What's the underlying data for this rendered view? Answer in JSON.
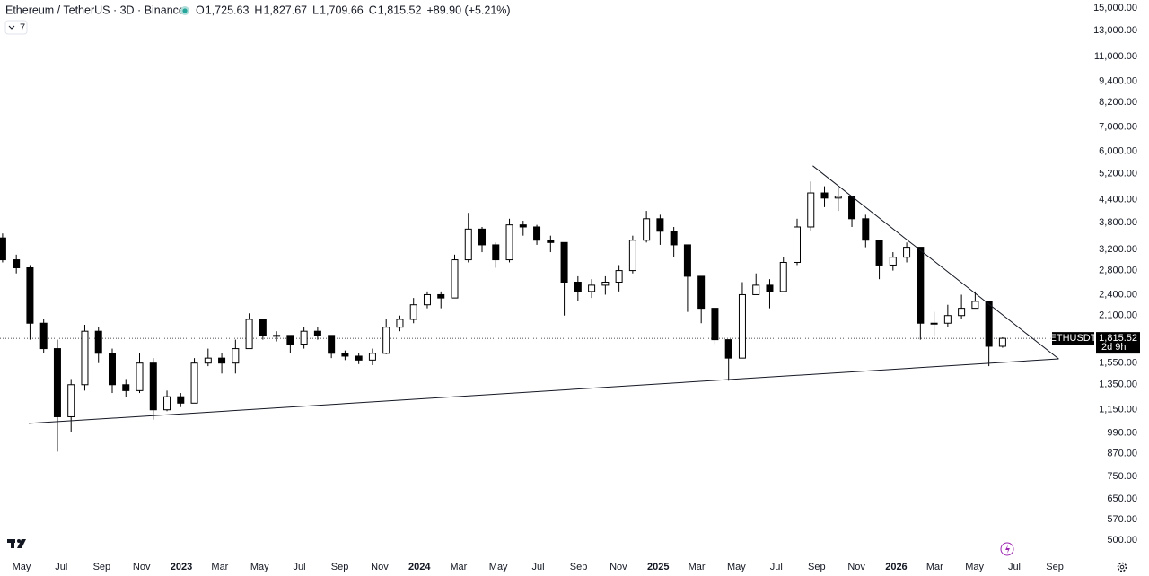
{
  "chart_data": {
    "type": "candlestick",
    "title": "Ethereum / TetherUS · 3D · Binance",
    "ohlc_legend": [
      {
        "key": "O",
        "text": "1,725.63"
      },
      {
        "key": "H",
        "text": "1,827.67"
      },
      {
        "key": "L",
        "text": "1,709.66"
      },
      {
        "key": "C",
        "text": "1,815.52"
      }
    ],
    "change": "+89.90 (+5.21%)",
    "indicator_count": "7",
    "symbol_tag": "ETHUSDT",
    "countdown": "2d 9h",
    "last_price": {
      "value": 1815.52,
      "label": "1,815.52"
    },
    "log_scale": true,
    "grid": false,
    "up_color": "#ffffff",
    "down_color": "#000000",
    "wick_color": "#000000",
    "x": [
      "2022-04-02",
      "2022-04-23",
      "2022-05-14",
      "2022-06-04",
      "2022-06-25",
      "2022-07-16",
      "2022-08-06",
      "2022-08-27",
      "2022-09-17",
      "2022-10-08",
      "2022-10-29",
      "2022-11-19",
      "2022-12-10",
      "2022-12-31",
      "2023-01-21",
      "2023-02-11",
      "2023-03-04",
      "2023-03-25",
      "2023-04-15",
      "2023-05-06",
      "2023-05-27",
      "2023-06-17",
      "2023-07-08",
      "2023-07-29",
      "2023-08-19",
      "2023-09-09",
      "2023-09-30",
      "2023-10-21",
      "2023-11-11",
      "2023-12-02",
      "2023-12-23",
      "2024-01-13",
      "2024-02-03",
      "2024-02-24",
      "2024-03-16",
      "2024-04-06",
      "2024-04-27",
      "2024-05-18",
      "2024-06-08",
      "2024-06-29",
      "2024-07-20",
      "2024-08-10",
      "2024-08-31",
      "2024-09-21",
      "2024-10-12",
      "2024-11-02",
      "2024-11-23",
      "2024-12-14",
      "2025-01-04",
      "2025-01-25",
      "2025-02-15",
      "2025-03-08",
      "2025-03-29",
      "2025-04-19",
      "2025-05-10",
      "2025-05-31",
      "2025-06-21",
      "2025-07-12",
      "2025-08-02",
      "2025-08-23",
      "2025-09-13",
      "2025-10-04",
      "2025-10-25",
      "2025-11-15",
      "2025-12-06",
      "2025-12-27",
      "2026-01-17",
      "2026-02-07",
      "2026-02-28",
      "2026-03-21",
      "2026-04-11",
      "2026-05-02",
      "2026-05-23",
      "2026-06-13"
    ],
    "open": [
      3450,
      3000,
      2850,
      2000,
      1700,
      1100,
      1350,
      1900,
      1650,
      1350,
      1300,
      1550,
      1150,
      1250,
      1200,
      1550,
      1600,
      1550,
      1700,
      2050,
      1850,
      1850,
      1750,
      1900,
      1850,
      1650,
      1620,
      1580,
      1650,
      1950,
      2050,
      2250,
      2400,
      2350,
      3000,
      3650,
      3300,
      3000,
      3750,
      3700,
      3400,
      3350,
      2600,
      2450,
      2550,
      2600,
      2800,
      3400,
      3900,
      3600,
      3300,
      2700,
      2200,
      1800,
      1600,
      2400,
      2550,
      2450,
      2950,
      3700,
      4600,
      4450,
      4500,
      3900,
      3400,
      2900,
      3050,
      3250,
      2000,
      2000,
      2100,
      2200,
      2300,
      1725.63
    ],
    "high": [
      3550,
      3100,
      2900,
      2050,
      1800,
      1400,
      1980,
      1950,
      1700,
      1400,
      1650,
      1600,
      1300,
      1280,
      1600,
      1700,
      1650,
      1800,
      2130,
      2050,
      1900,
      1850,
      1950,
      1950,
      1850,
      1680,
      1650,
      1700,
      2050,
      2100,
      2350,
      2450,
      2450,
      3100,
      4050,
      3700,
      3350,
      3900,
      3850,
      3750,
      3500,
      3350,
      2700,
      2650,
      2700,
      2900,
      3500,
      4100,
      4000,
      3700,
      3300,
      2700,
      2200,
      1800,
      2600,
      2750,
      2650,
      3050,
      3900,
      4950,
      4800,
      4750,
      4500,
      4000,
      3400,
      3150,
      3350,
      3250,
      2150,
      2250,
      2400,
      2450,
      2300,
      1827.67
    ],
    "low": [
      2950,
      2750,
      1800,
      1650,
      880,
      1000,
      1300,
      1550,
      1280,
      1250,
      1280,
      1080,
      1140,
      1170,
      1200,
      1520,
      1450,
      1450,
      1700,
      1800,
      1780,
      1650,
      1700,
      1800,
      1600,
      1580,
      1540,
      1530,
      1640,
      1900,
      2000,
      2200,
      2200,
      2350,
      2950,
      3150,
      2850,
      2950,
      3500,
      3300,
      3150,
      2100,
      2300,
      2350,
      2400,
      2450,
      2750,
      3350,
      3300,
      3050,
      2150,
      2000,
      1750,
      1385,
      1600,
      2450,
      2200,
      2450,
      2900,
      3600,
      4200,
      4100,
      3700,
      3250,
      2650,
      2800,
      2950,
      1800,
      1850,
      1950,
      2050,
      2200,
      1520,
      1709.66
    ],
    "close": [
      3000,
      2850,
      2000,
      1700,
      1100,
      1350,
      1900,
      1650,
      1350,
      1300,
      1550,
      1150,
      1250,
      1200,
      1550,
      1600,
      1550,
      1700,
      2050,
      1850,
      1850,
      1750,
      1900,
      1850,
      1650,
      1620,
      1580,
      1650,
      1950,
      2050,
      2250,
      2400,
      2350,
      3000,
      3650,
      3300,
      3000,
      3750,
      3700,
      3400,
      3350,
      2600,
      2450,
      2550,
      2600,
      2800,
      3400,
      3900,
      3600,
      3300,
      2700,
      2200,
      1800,
      1600,
      2400,
      2550,
      2450,
      2950,
      3700,
      4600,
      4450,
      4500,
      3900,
      3400,
      2900,
      3050,
      3250,
      2000,
      2000,
      2100,
      2200,
      2300,
      1725.63,
      1815.52
    ],
    "trendlines": [
      {
        "start": [
          "2022-05-12",
          1054
        ],
        "end": [
          "2026-09-07",
          1592
        ]
      },
      {
        "start": [
          "2025-08-26",
          5470
        ],
        "end": [
          "2026-09-07",
          1592
        ]
      }
    ],
    "xlim": [
      "2022-03-29",
      "2026-10-26"
    ],
    "xticks": [
      {
        "value": "2022-05-01",
        "label": "May"
      },
      {
        "value": "2022-07-01",
        "label": "Jul"
      },
      {
        "value": "2022-09-01",
        "label": "Sep"
      },
      {
        "value": "2022-11-01",
        "label": "Nov"
      },
      {
        "value": "2023-01-01",
        "label": "2023"
      },
      {
        "value": "2023-03-01",
        "label": "Mar"
      },
      {
        "value": "2023-05-01",
        "label": "May"
      },
      {
        "value": "2023-07-01",
        "label": "Jul"
      },
      {
        "value": "2023-09-01",
        "label": "Sep"
      },
      {
        "value": "2023-11-01",
        "label": "Nov"
      },
      {
        "value": "2024-01-01",
        "label": "2024"
      },
      {
        "value": "2024-03-01",
        "label": "Mar"
      },
      {
        "value": "2024-05-01",
        "label": "May"
      },
      {
        "value": "2024-07-01",
        "label": "Jul"
      },
      {
        "value": "2024-09-01",
        "label": "Sep"
      },
      {
        "value": "2024-11-01",
        "label": "Nov"
      },
      {
        "value": "2025-01-01",
        "label": "2025"
      },
      {
        "value": "2025-03-01",
        "label": "Mar"
      },
      {
        "value": "2025-05-01",
        "label": "May"
      },
      {
        "value": "2025-07-01",
        "label": "Jul"
      },
      {
        "value": "2025-09-01",
        "label": "Sep"
      },
      {
        "value": "2025-11-01",
        "label": "Nov"
      },
      {
        "value": "2026-01-01",
        "label": "2026"
      },
      {
        "value": "2026-03-01",
        "label": "Mar"
      },
      {
        "value": "2026-05-01",
        "label": "May"
      },
      {
        "value": "2026-07-01",
        "label": "Jul"
      },
      {
        "value": "2026-09-01",
        "label": "Sep"
      }
    ],
    "ylim": [
      456,
      15790
    ],
    "yticks": [
      {
        "value": 15000,
        "label": "15,000.00"
      },
      {
        "value": 13000,
        "label": "13,000.00"
      },
      {
        "value": 11000,
        "label": "11,000.00"
      },
      {
        "value": 9400,
        "label": "9,400.00"
      },
      {
        "value": 8200,
        "label": "8,200.00"
      },
      {
        "value": 7000,
        "label": "7,000.00"
      },
      {
        "value": 6000,
        "label": "6,000.00"
      },
      {
        "value": 5200,
        "label": "5,200.00"
      },
      {
        "value": 4400,
        "label": "4,400.00"
      },
      {
        "value": 3800,
        "label": "3,800.00"
      },
      {
        "value": 3200,
        "label": "3,200.00"
      },
      {
        "value": 2800,
        "label": "2,800.00"
      },
      {
        "value": 2400,
        "label": "2,400.00"
      },
      {
        "value": 2100,
        "label": "2,100.00"
      },
      {
        "value": 1550,
        "label": "1,550.00"
      },
      {
        "value": 1350,
        "label": "1,350.00"
      },
      {
        "value": 1150,
        "label": "1,150.00"
      },
      {
        "value": 990,
        "label": "990.00"
      },
      {
        "value": 870,
        "label": "870.00"
      },
      {
        "value": 750,
        "label": "750.00"
      },
      {
        "value": 650,
        "label": "650.00"
      },
      {
        "value": 570,
        "label": "570.00"
      },
      {
        "value": 500,
        "label": "500.00"
      }
    ]
  }
}
